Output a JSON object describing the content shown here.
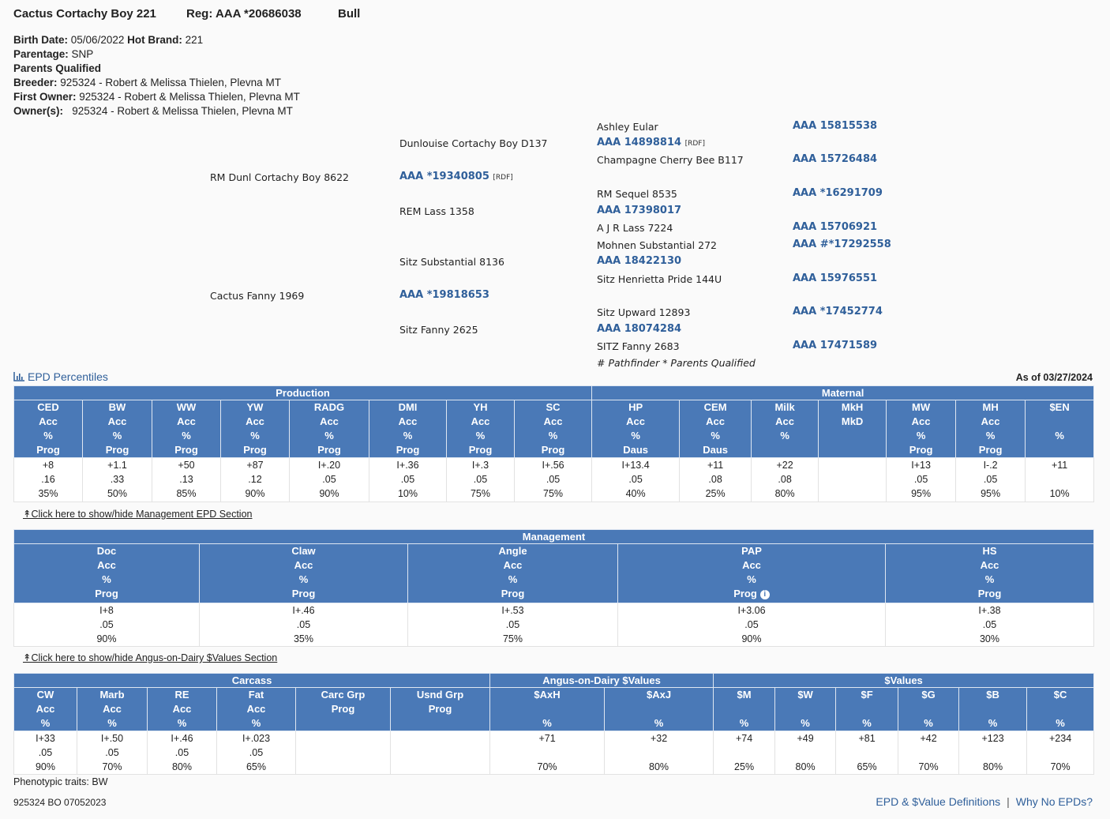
{
  "animal": {
    "name": "Cactus Cortachy Boy 221",
    "reg": "Reg: AAA *20686038",
    "sex": "Bull"
  },
  "details": {
    "birth_label": "Birth Date:",
    "birth": "05/06/2022",
    "brand_label": "Hot Brand:",
    "brand": "221",
    "parentage_label": "Parentage:",
    "parentage": "SNP",
    "qualified": "Parents Qualified",
    "breeder_label": "Breeder:",
    "breeder": "925324 - Robert & Melissa Thielen, Plevna MT",
    "first_owner_label": "First Owner:",
    "first_owner": "925324 - Robert & Melissa Thielen, Plevna MT",
    "owners_label": "Owner(s):",
    "owners": "925324 - Robert & Melissa Thielen, Plevna MT"
  },
  "pedigree": {
    "sire": {
      "name": "RM Dunl Cortachy Boy 8622",
      "reg": "AAA *19340805",
      "tag": "[RDF]"
    },
    "dam": {
      "name": "Cactus Fanny 1969",
      "reg": "AAA *19818653"
    },
    "ss": {
      "name": "Dunlouise Cortachy Boy D137",
      "reg": "AAA 14898814",
      "tag": "[RDF]"
    },
    "sd": {
      "name": "REM Lass 1358",
      "reg": "AAA 17398017"
    },
    "ds": {
      "name": "Sitz Substantial 8136",
      "reg": "AAA 18422130"
    },
    "dd": {
      "name": "Sitz Fanny 2625",
      "reg": "AAA 18074284"
    },
    "sss": {
      "name": "Ashley Eular",
      "reg": "AAA 15815538"
    },
    "ssd": {
      "name": "Champagne Cherry Bee B117",
      "reg": "AAA 15726484"
    },
    "sds": {
      "name": "RM Sequel 8535",
      "reg": "AAA *16291709"
    },
    "sdd": {
      "name": "A J R Lass 7224",
      "reg": "AAA 15706921"
    },
    "dss": {
      "name": "Mohnen Substantial 272",
      "reg": "AAA #*17292558"
    },
    "dsd": {
      "name": "Sitz Henrietta Pride 144U",
      "reg": "AAA 15976551"
    },
    "dds": {
      "name": "Sitz Upward 12893",
      "reg": "AAA *17452774"
    },
    "ddd": {
      "name": "SITZ Fanny 2683",
      "reg": "AAA 17471589"
    },
    "legend": "# Pathfinder * Parents Qualified"
  },
  "epd_section": {
    "title": "EPD Percentiles",
    "as_of": "As of 03/27/2024"
  },
  "epd_table": {
    "groups": [
      {
        "label": "Production",
        "span": 8
      },
      {
        "label": "Maternal",
        "span": 7
      }
    ],
    "columns": [
      {
        "header": [
          "CED",
          "Acc",
          "%",
          "Prog"
        ],
        "values": [
          "+8",
          ".16",
          "35%"
        ]
      },
      {
        "header": [
          "BW",
          "Acc",
          "%",
          "Prog"
        ],
        "values": [
          "+1.1",
          ".33",
          "50%"
        ]
      },
      {
        "header": [
          "WW",
          "Acc",
          "%",
          "Prog"
        ],
        "values": [
          "+50",
          ".13",
          "85%"
        ]
      },
      {
        "header": [
          "YW",
          "Acc",
          "%",
          "Prog"
        ],
        "values": [
          "+87",
          ".12",
          "90%"
        ]
      },
      {
        "header": [
          "RADG",
          "Acc",
          "%",
          "Prog"
        ],
        "values": [
          "I+.20",
          ".05",
          "90%"
        ]
      },
      {
        "header": [
          "DMI",
          "Acc",
          "%",
          "Prog"
        ],
        "values": [
          "I+.36",
          ".05",
          "10%"
        ]
      },
      {
        "header": [
          "YH",
          "Acc",
          "%",
          "Prog"
        ],
        "values": [
          "I+.3",
          ".05",
          "75%"
        ]
      },
      {
        "header": [
          "SC",
          "Acc",
          "%",
          "Prog"
        ],
        "values": [
          "I+.56",
          ".05",
          "75%"
        ]
      },
      {
        "header": [
          "HP",
          "Acc",
          "%",
          "Daus"
        ],
        "values": [
          "I+13.4",
          ".05",
          "40%"
        ]
      },
      {
        "header": [
          "CEM",
          "Acc",
          "%",
          "Daus"
        ],
        "values": [
          "+11",
          ".08",
          "25%"
        ]
      },
      {
        "header": [
          "Milk",
          "Acc",
          "%",
          ""
        ],
        "values": [
          "+22",
          ".08",
          "80%"
        ]
      },
      {
        "header": [
          "MkH",
          "MkD",
          "",
          ""
        ],
        "values": [
          "",
          "",
          ""
        ]
      },
      {
        "header": [
          "MW",
          "Acc",
          "%",
          "Prog"
        ],
        "values": [
          "I+13",
          ".05",
          "95%"
        ]
      },
      {
        "header": [
          "MH",
          "Acc",
          "%",
          "Prog"
        ],
        "values": [
          "I-.2",
          ".05",
          "95%"
        ]
      },
      {
        "header": [
          "$EN",
          "",
          "%",
          ""
        ],
        "values": [
          "+11",
          "",
          "10%"
        ]
      }
    ]
  },
  "toggle_management": "Click here to show/hide Management EPD Section",
  "management_table": {
    "groups": [
      {
        "label": "Management",
        "span": 5
      }
    ],
    "columns": [
      {
        "header": [
          "Doc",
          "Acc",
          "%",
          "Prog"
        ],
        "values": [
          "I+8",
          ".05",
          "90%"
        ]
      },
      {
        "header": [
          "Claw",
          "Acc",
          "%",
          "Prog"
        ],
        "values": [
          "I+.46",
          ".05",
          "35%"
        ]
      },
      {
        "header": [
          "Angle",
          "Acc",
          "%",
          "Prog"
        ],
        "values": [
          "I+.53",
          ".05",
          "75%"
        ]
      },
      {
        "header": [
          "PAP",
          "Acc",
          "%",
          "Prog"
        ],
        "values": [
          "I+3.06",
          ".05",
          "90%"
        ],
        "info": true
      },
      {
        "header": [
          "HS",
          "Acc",
          "%",
          "Prog"
        ],
        "values": [
          "I+.38",
          ".05",
          "30%"
        ]
      }
    ]
  },
  "toggle_dairy": "Click here to show/hide Angus-on-Dairy $Values Section",
  "carcass_table": {
    "groups": [
      {
        "label": "Carcass",
        "span": 6
      },
      {
        "label": "Angus-on-Dairy $Values",
        "span": 2
      },
      {
        "label": "$Values",
        "span": 6
      }
    ],
    "columns": [
      {
        "header": [
          "CW",
          "Acc",
          "%"
        ],
        "values": [
          "I+33",
          ".05",
          "90%"
        ]
      },
      {
        "header": [
          "Marb",
          "Acc",
          "%"
        ],
        "values": [
          "I+.50",
          ".05",
          "70%"
        ]
      },
      {
        "header": [
          "RE",
          "Acc",
          "%"
        ],
        "values": [
          "I+.46",
          ".05",
          "80%"
        ]
      },
      {
        "header": [
          "Fat",
          "Acc",
          "%"
        ],
        "values": [
          "I+.023",
          ".05",
          "65%"
        ]
      },
      {
        "header": [
          "Carc Grp",
          "Prog",
          ""
        ],
        "values": [
          "",
          "",
          ""
        ]
      },
      {
        "header": [
          "Usnd Grp",
          "Prog",
          ""
        ],
        "values": [
          "",
          "",
          ""
        ]
      },
      {
        "header": [
          "$AxH",
          "",
          "%"
        ],
        "values": [
          "+71",
          "",
          "70%"
        ]
      },
      {
        "header": [
          "$AxJ",
          "",
          "%"
        ],
        "values": [
          "+32",
          "",
          "80%"
        ]
      },
      {
        "header": [
          "$M",
          "",
          "%"
        ],
        "values": [
          "+74",
          "",
          "25%"
        ]
      },
      {
        "header": [
          "$W",
          "",
          "%"
        ],
        "values": [
          "+49",
          "",
          "80%"
        ]
      },
      {
        "header": [
          "$F",
          "",
          "%"
        ],
        "values": [
          "+81",
          "",
          "65%"
        ]
      },
      {
        "header": [
          "$G",
          "",
          "%"
        ],
        "values": [
          "+42",
          "",
          "70%"
        ]
      },
      {
        "header": [
          "$B",
          "",
          "%"
        ],
        "values": [
          "+123",
          "",
          "80%"
        ]
      },
      {
        "header": [
          "$C",
          "",
          "%"
        ],
        "values": [
          "+234",
          "",
          "70%"
        ]
      }
    ]
  },
  "footer": {
    "phenotypic": "Phenotypic traits:  BW",
    "code": "925324 BO 07052023",
    "definitions_link": "EPD & $Value Definitions",
    "separator": "|",
    "why_link": "Why No EPDs?"
  },
  "colors": {
    "header_blue": "#4a79b7",
    "link_blue": "#2f5f9a"
  }
}
